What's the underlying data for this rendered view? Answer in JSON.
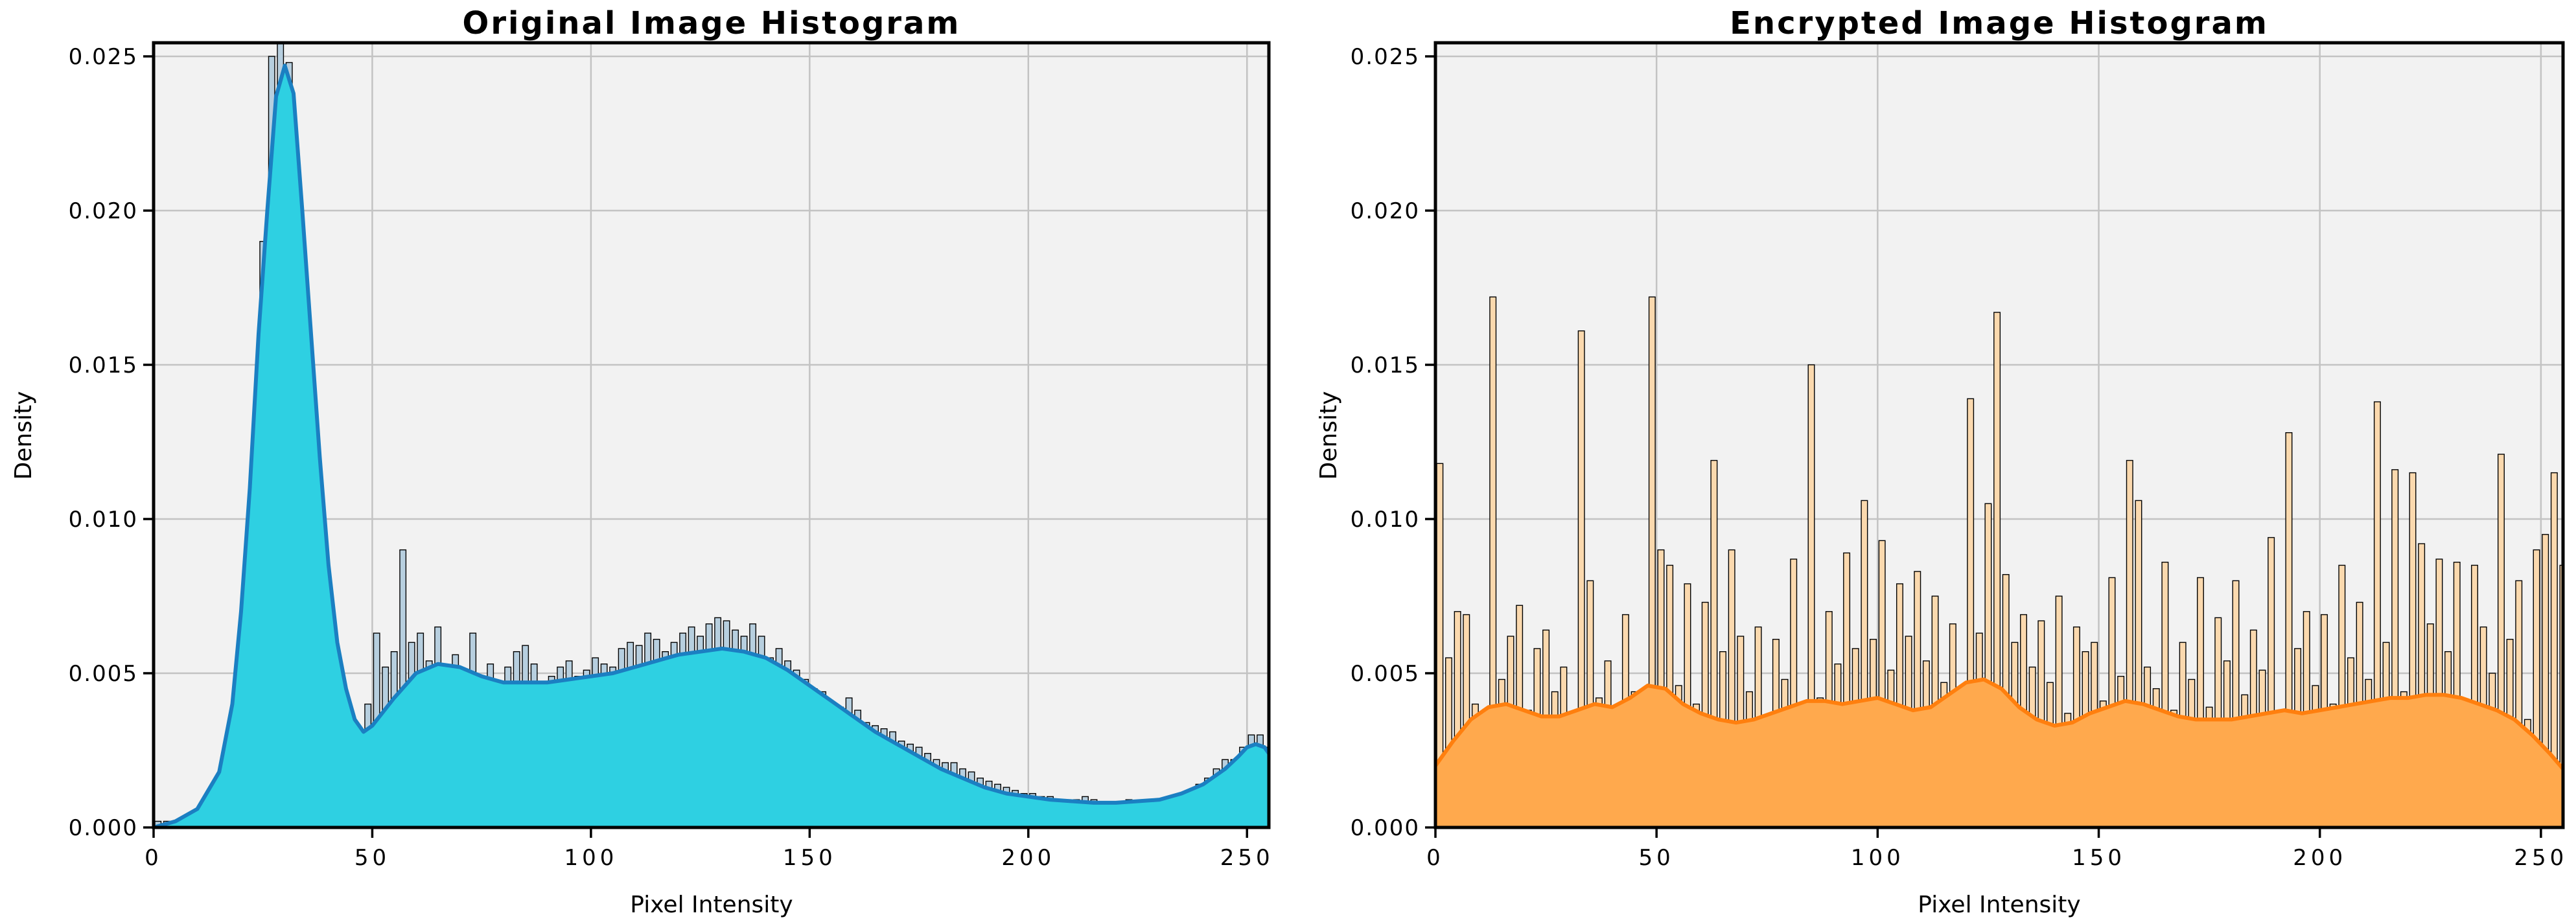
{
  "figure": {
    "background": "#ffffff",
    "plot_background": "#f2f2f2",
    "grid_color": "#c3c3c3",
    "spine_color": "#000000",
    "tick_color": "#000000",
    "text_color": "#000000"
  },
  "chart_data": [
    {
      "type": "bar",
      "subtype": "histogram-with-kde",
      "title": "Original Image Histogram",
      "xlabel": "Pixel Intensity",
      "ylabel": "Density",
      "x_tick_labels": [
        "0",
        "50",
        "100",
        "150",
        "200",
        "250"
      ],
      "x_tick_values": [
        0,
        50,
        100,
        150,
        200,
        250
      ],
      "y_tick_labels": [
        "0.000",
        "0.005",
        "0.010",
        "0.015",
        "0.020",
        "0.025"
      ],
      "y_tick_values": [
        0,
        0.005,
        0.01,
        0.015,
        0.02,
        0.025
      ],
      "xlim": [
        0,
        255
      ],
      "ylim": [
        0,
        0.0254
      ],
      "grid": true,
      "legend": false,
      "bin_width": 2,
      "bin_centers_start": 1,
      "values": [
        0.0002,
        0.0002,
        0.0002,
        0.0003,
        0.0003,
        0.0004,
        0.0005,
        0.0007,
        0.001,
        0.0015,
        0.0035,
        0.011,
        0.019,
        0.025,
        0.0256,
        0.0248,
        0.0205,
        0.014,
        0.0098,
        0.0071,
        0.005,
        0.0038,
        0.0031,
        0.0028,
        0.004,
        0.0063,
        0.0052,
        0.0057,
        0.009,
        0.006,
        0.0063,
        0.0054,
        0.0065,
        0.0052,
        0.0056,
        0.0051,
        0.0063,
        0.0049,
        0.0053,
        0.0047,
        0.0052,
        0.0057,
        0.0059,
        0.0053,
        0.0046,
        0.0049,
        0.0052,
        0.0054,
        0.0049,
        0.0051,
        0.0055,
        0.0053,
        0.0052,
        0.0058,
        0.006,
        0.0059,
        0.0063,
        0.0061,
        0.0057,
        0.006,
        0.0063,
        0.0065,
        0.0062,
        0.0066,
        0.0068,
        0.0067,
        0.0064,
        0.0062,
        0.0066,
        0.0062,
        0.0055,
        0.0058,
        0.0054,
        0.0051,
        0.0048,
        0.0045,
        0.0044,
        0.004,
        0.0039,
        0.0042,
        0.0038,
        0.0034,
        0.0033,
        0.0032,
        0.0031,
        0.0028,
        0.0027,
        0.0026,
        0.0024,
        0.0022,
        0.0021,
        0.0021,
        0.0019,
        0.0018,
        0.0016,
        0.0015,
        0.0014,
        0.0013,
        0.0012,
        0.0011,
        0.0011,
        0.001,
        0.001,
        0.0009,
        0.0009,
        0.0009,
        0.001,
        0.0009,
        0.0008,
        0.0008,
        0.0008,
        0.0009,
        0.0008,
        0.0008,
        0.0009,
        0.0009,
        0.001,
        0.0011,
        0.0012,
        0.0014,
        0.0016,
        0.0019,
        0.0022,
        0.0022,
        0.0026,
        0.003,
        0.003,
        0.0026
      ],
      "kde_x": [
        0,
        5,
        10,
        15,
        18,
        20,
        22,
        24,
        26,
        28,
        30,
        32,
        34,
        36,
        38,
        40,
        42,
        44,
        46,
        48,
        50,
        55,
        60,
        65,
        70,
        75,
        80,
        85,
        90,
        95,
        100,
        105,
        110,
        115,
        120,
        125,
        130,
        135,
        140,
        145,
        150,
        155,
        160,
        165,
        170,
        175,
        180,
        185,
        190,
        195,
        200,
        205,
        210,
        215,
        220,
        225,
        230,
        235,
        240,
        245,
        248,
        250,
        252,
        254,
        255
      ],
      "kde_y": [
        0.0,
        0.0002,
        0.0006,
        0.0018,
        0.004,
        0.007,
        0.011,
        0.016,
        0.02,
        0.0237,
        0.0247,
        0.0238,
        0.02,
        0.016,
        0.012,
        0.0085,
        0.006,
        0.0045,
        0.0035,
        0.0031,
        0.0033,
        0.0042,
        0.005,
        0.0053,
        0.0052,
        0.0049,
        0.0047,
        0.0047,
        0.0047,
        0.0048,
        0.0049,
        0.005,
        0.0052,
        0.0054,
        0.0056,
        0.0057,
        0.0058,
        0.0057,
        0.0055,
        0.0051,
        0.0046,
        0.0041,
        0.0036,
        0.0031,
        0.0027,
        0.0023,
        0.0019,
        0.0016,
        0.0013,
        0.0011,
        0.001,
        0.0009,
        0.00085,
        0.0008,
        0.0008,
        0.00085,
        0.0009,
        0.0011,
        0.0014,
        0.0019,
        0.0023,
        0.0026,
        0.0027,
        0.0026,
        0.0024
      ],
      "colors": {
        "bar_fill": "#b7cfdf",
        "bar_edge": "#000000",
        "kde_fill": "#2ed0e2",
        "kde_line": "#1b7fc2"
      }
    },
    {
      "type": "bar",
      "subtype": "histogram-with-kde",
      "title": "Encrypted Image Histogram",
      "xlabel": "Pixel Intensity",
      "ylabel": "Density",
      "x_tick_labels": [
        "0",
        "50",
        "100",
        "150",
        "200",
        "250"
      ],
      "x_tick_values": [
        0,
        50,
        100,
        150,
        200,
        250
      ],
      "y_tick_labels": [
        "0.000",
        "0.005",
        "0.010",
        "0.015",
        "0.020",
        "0.025"
      ],
      "y_tick_values": [
        0,
        0.005,
        0.01,
        0.015,
        0.02,
        0.025
      ],
      "xlim": [
        0,
        255
      ],
      "ylim": [
        0,
        0.0254
      ],
      "grid": true,
      "legend": false,
      "bin_width": 2,
      "bin_centers_start": 1,
      "values": [
        0.0118,
        0.0055,
        0.007,
        0.0069,
        0.004,
        0.0028,
        0.0172,
        0.0048,
        0.0062,
        0.0072,
        0.0038,
        0.0058,
        0.0064,
        0.0044,
        0.0052,
        0.0032,
        0.0161,
        0.008,
        0.0042,
        0.0054,
        0.0034,
        0.0069,
        0.0044,
        0.003,
        0.0172,
        0.009,
        0.0085,
        0.0046,
        0.0079,
        0.004,
        0.0073,
        0.0119,
        0.0057,
        0.009,
        0.0062,
        0.0044,
        0.0065,
        0.0034,
        0.0061,
        0.0048,
        0.0087,
        0.0036,
        0.015,
        0.0042,
        0.007,
        0.0053,
        0.0089,
        0.0058,
        0.0106,
        0.0061,
        0.0093,
        0.0051,
        0.0079,
        0.0062,
        0.0083,
        0.0054,
        0.0075,
        0.0047,
        0.0066,
        0.0042,
        0.0139,
        0.0063,
        0.0105,
        0.0167,
        0.0082,
        0.006,
        0.0069,
        0.0052,
        0.0067,
        0.0047,
        0.0075,
        0.0037,
        0.0065,
        0.0057,
        0.006,
        0.0041,
        0.0081,
        0.0049,
        0.0119,
        0.0106,
        0.0052,
        0.0045,
        0.0086,
        0.0038,
        0.006,
        0.0048,
        0.0081,
        0.0039,
        0.0068,
        0.0054,
        0.008,
        0.0043,
        0.0064,
        0.0051,
        0.0094,
        0.0033,
        0.0128,
        0.0058,
        0.007,
        0.0046,
        0.0069,
        0.004,
        0.0085,
        0.0055,
        0.0073,
        0.0048,
        0.0138,
        0.006,
        0.0116,
        0.0044,
        0.0115,
        0.0092,
        0.0066,
        0.0087,
        0.0057,
        0.0086,
        0.0041,
        0.0085,
        0.0065,
        0.005,
        0.0121,
        0.0061,
        0.008,
        0.0035,
        0.009,
        0.0095,
        0.0115,
        0.0085
      ],
      "kde_x": [
        0,
        4,
        8,
        12,
        16,
        20,
        24,
        28,
        32,
        36,
        40,
        44,
        48,
        52,
        56,
        60,
        64,
        68,
        72,
        76,
        80,
        84,
        88,
        92,
        96,
        100,
        104,
        108,
        112,
        116,
        120,
        124,
        128,
        132,
        136,
        140,
        144,
        148,
        152,
        156,
        160,
        164,
        168,
        172,
        176,
        180,
        184,
        188,
        192,
        196,
        200,
        204,
        208,
        212,
        216,
        220,
        224,
        228,
        232,
        236,
        240,
        244,
        248,
        252,
        255
      ],
      "kde_y": [
        0.002,
        0.0028,
        0.0035,
        0.0039,
        0.004,
        0.0038,
        0.0036,
        0.0036,
        0.0038,
        0.004,
        0.0039,
        0.0042,
        0.0046,
        0.0045,
        0.004,
        0.0037,
        0.0035,
        0.0034,
        0.0035,
        0.0037,
        0.0039,
        0.0041,
        0.0041,
        0.004,
        0.0041,
        0.0042,
        0.004,
        0.0038,
        0.0039,
        0.0043,
        0.0047,
        0.0048,
        0.0045,
        0.0039,
        0.0035,
        0.0033,
        0.0034,
        0.0037,
        0.0039,
        0.0041,
        0.004,
        0.0038,
        0.0036,
        0.0035,
        0.0035,
        0.0035,
        0.0036,
        0.0037,
        0.0038,
        0.0037,
        0.0038,
        0.0039,
        0.004,
        0.0041,
        0.0042,
        0.0042,
        0.0043,
        0.0043,
        0.0042,
        0.004,
        0.0038,
        0.0035,
        0.003,
        0.0024,
        0.0019
      ],
      "colors": {
        "bar_fill": "#fbd9ae",
        "bar_edge": "#000000",
        "kde_fill": "#ffa94d",
        "kde_line": "#ff7f0e"
      }
    }
  ]
}
